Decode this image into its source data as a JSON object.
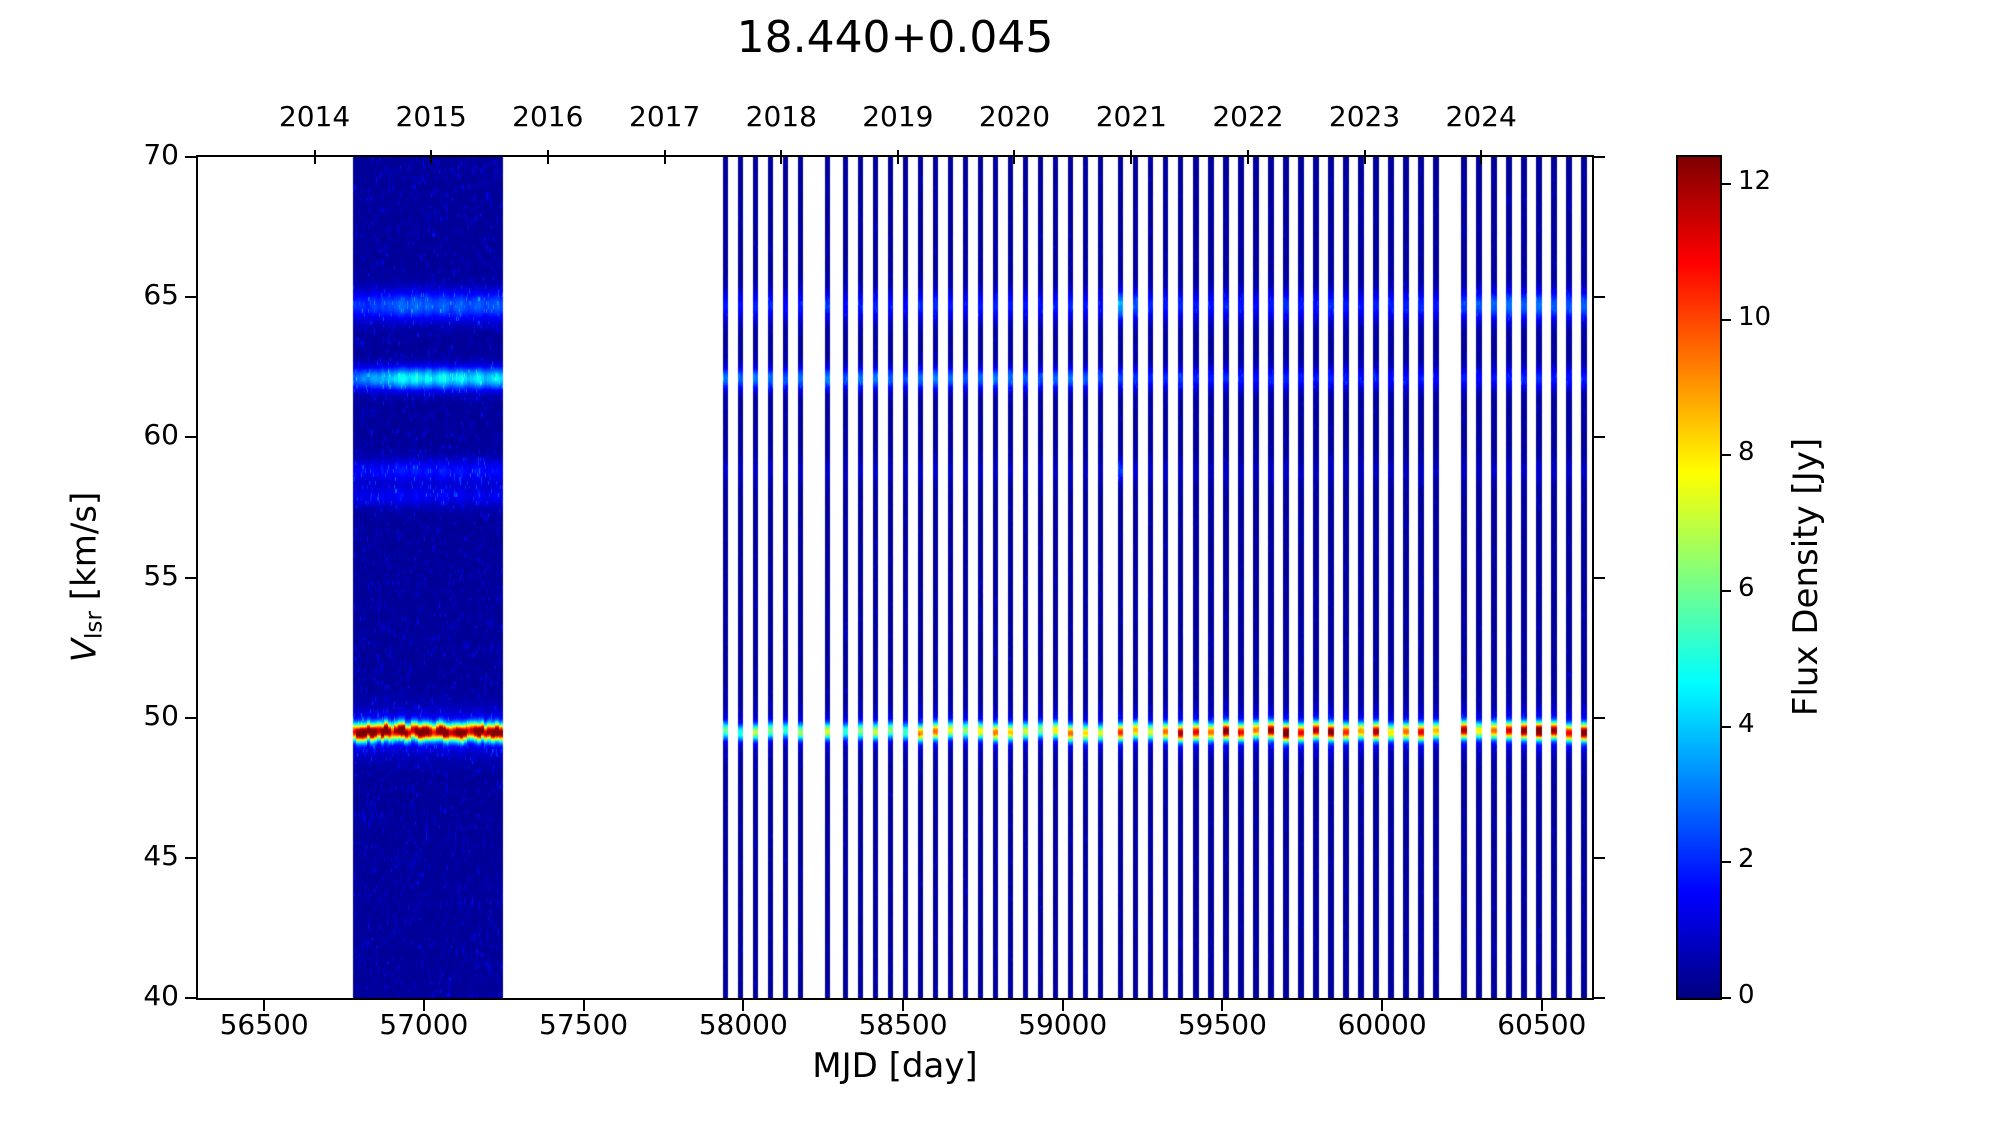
{
  "title": "18.440+0.045",
  "axes": {
    "xlabel": "MJD [day]",
    "ylabel": {
      "var": "V",
      "sub": "lsr",
      "rest": " [km/s]"
    },
    "x_ticks": [
      56500,
      57000,
      57500,
      58000,
      58500,
      59000,
      59500,
      60000,
      60500
    ],
    "y_ticks": [
      70,
      65,
      60,
      55,
      50,
      45,
      40
    ],
    "top_years": [
      {
        "label": "2014",
        "mjd": 56658
      },
      {
        "label": "2015",
        "mjd": 57023
      },
      {
        "label": "2016",
        "mjd": 57388
      },
      {
        "label": "2017",
        "mjd": 57754
      },
      {
        "label": "2018",
        "mjd": 58119
      },
      {
        "label": "2019",
        "mjd": 58484
      },
      {
        "label": "2020",
        "mjd": 58849
      },
      {
        "label": "2021",
        "mjd": 59215
      },
      {
        "label": "2022",
        "mjd": 59580
      },
      {
        "label": "2023",
        "mjd": 59945
      },
      {
        "label": "2024",
        "mjd": 60310
      }
    ]
  },
  "colorbar": {
    "label": "Flux Density [Jy]",
    "ticks": [
      0,
      2,
      4,
      6,
      8,
      10,
      12
    ],
    "vmin": 0,
    "vmax": 12.4,
    "colormap": "jet"
  },
  "chart_data": {
    "type": "heatmap",
    "title": "18.440+0.045",
    "xlabel": "MJD [day]",
    "ylabel": "Vlsr [km/s]",
    "xlim": [
      56293,
      60657
    ],
    "ylim": [
      40,
      70
    ],
    "flux_min_jy": 0,
    "flux_max_jy": 12.4,
    "grid": false,
    "background_flux_jy": 0.3,
    "feature_velocities_kms": [
      49.5,
      57.9,
      58.8,
      62.1,
      64.7
    ],
    "feature_sigmas_kms": [
      0.2,
      0.28,
      0.3,
      0.28,
      0.38
    ],
    "dense_campaign_mjd": [
      56785,
      57240
    ],
    "sparse_campaign_mjd": [
      57942,
      60631
    ],
    "stripe_width_days": {
      "dense": 11,
      "sparse": 14
    },
    "epochs_format": [
      "mjd",
      "amp_49.5",
      "amp_62.1",
      "amp_64.7",
      "amp_58.8",
      "amp_57.9"
    ],
    "epochs": [
      [
        56785,
        9.5,
        2.4,
        1.6,
        1.0,
        0.8
      ],
      [
        56794,
        11.8,
        2.6,
        1.7,
        1.1,
        0.9
      ],
      [
        56805,
        12.4,
        2.8,
        1.8,
        1.2,
        1.0
      ],
      [
        56817,
        12.0,
        3.0,
        1.7,
        1.1,
        0.9
      ],
      [
        56826,
        11.2,
        2.7,
        1.6,
        1.0,
        0.8
      ],
      [
        56838,
        12.4,
        3.2,
        1.9,
        1.3,
        1.1
      ],
      [
        56850,
        11.5,
        3.4,
        2.0,
        1.2,
        1.0
      ],
      [
        56859,
        10.2,
        3.1,
        1.8,
        1.1,
        0.9
      ],
      [
        56871,
        12.2,
        3.6,
        2.1,
        1.4,
        1.2
      ],
      [
        56880,
        12.4,
        3.3,
        2.0,
        1.2,
        1.0
      ],
      [
        56892,
        11.0,
        3.8,
        2.2,
        1.3,
        1.1
      ],
      [
        56903,
        9.0,
        3.5,
        2.1,
        1.2,
        0.9
      ],
      [
        56912,
        10.5,
        4.0,
        2.3,
        1.4,
        1.2
      ],
      [
        56924,
        11.8,
        4.4,
        2.4,
        1.5,
        1.3
      ],
      [
        56933,
        12.4,
        4.6,
        2.5,
        1.6,
        1.2
      ],
      [
        56945,
        10.8,
        4.2,
        2.3,
        1.4,
        1.0
      ],
      [
        56957,
        9.6,
        3.9,
        2.2,
        1.3,
        0.9
      ],
      [
        56966,
        10.0,
        4.3,
        2.4,
        1.5,
        1.1
      ],
      [
        56978,
        11.4,
        4.6,
        2.6,
        1.6,
        1.3
      ],
      [
        56987,
        12.0,
        4.1,
        2.4,
        1.4,
        1.1
      ],
      [
        56999,
        12.4,
        3.8,
        2.2,
        1.3,
        1.0
      ],
      [
        57010,
        11.6,
        4.5,
        2.5,
        1.5,
        1.2
      ],
      [
        57022,
        10.4,
        4.2,
        2.3,
        1.4,
        1.0
      ],
      [
        57031,
        9.2,
        3.7,
        2.1,
        1.2,
        0.9
      ],
      [
        57043,
        10.8,
        4.0,
        2.2,
        1.3,
        1.0
      ],
      [
        57052,
        11.9,
        4.4,
        2.4,
        1.5,
        1.2
      ],
      [
        57064,
        12.4,
        4.6,
        2.5,
        1.6,
        1.3
      ],
      [
        57076,
        11.1,
        4.1,
        2.3,
        1.4,
        1.1
      ],
      [
        57085,
        9.8,
        3.6,
        2.0,
        1.2,
        0.9
      ],
      [
        57097,
        10.6,
        3.9,
        2.2,
        1.3,
        1.0
      ],
      [
        57106,
        11.5,
        4.2,
        2.4,
        1.4,
        1.1
      ],
      [
        57118,
        12.2,
        4.5,
        2.5,
        1.5,
        1.2
      ],
      [
        57129,
        10.9,
        4.0,
        2.2,
        1.3,
        1.0
      ],
      [
        57141,
        9.4,
        3.5,
        2.0,
        1.1,
        0.8
      ],
      [
        57150,
        10.2,
        3.8,
        2.1,
        1.2,
        0.9
      ],
      [
        57162,
        11.6,
        4.1,
        2.3,
        1.4,
        1.1
      ],
      [
        57171,
        12.4,
        4.4,
        2.4,
        1.5,
        1.2
      ],
      [
        57183,
        11.3,
        3.9,
        2.2,
        1.3,
        1.0
      ],
      [
        57195,
        10.0,
        3.4,
        1.9,
        1.1,
        0.8
      ],
      [
        57204,
        10.7,
        3.7,
        2.1,
        1.2,
        0.9
      ],
      [
        57216,
        11.8,
        4.0,
        2.2,
        1.3,
        1.0
      ],
      [
        57228,
        12.4,
        4.3,
        2.4,
        1.4,
        1.1
      ],
      [
        57240,
        11.0,
        3.8,
        2.1,
        1.2,
        0.9
      ],
      [
        57942,
        5.0,
        2.6,
        1.5,
        0.5,
        0
      ],
      [
        57989,
        4.2,
        2.4,
        1.4,
        0.4,
        0
      ],
      [
        58036,
        5.8,
        2.7,
        1.6,
        0.5,
        0
      ],
      [
        58083,
        5.2,
        2.5,
        1.5,
        0.5,
        0
      ],
      [
        58130,
        4.4,
        2.2,
        1.3,
        0.4,
        0
      ],
      [
        58177,
        5.6,
        2.6,
        1.5,
        0.5,
        0
      ],
      [
        58262,
        6.2,
        2.8,
        1.7,
        0.6,
        0
      ],
      [
        58318,
        4.4,
        2.1,
        1.3,
        0.4,
        0
      ],
      [
        58365,
        5.4,
        2.5,
        1.5,
        0.5,
        0
      ],
      [
        58412,
        6.0,
        2.7,
        1.6,
        0.5,
        0
      ],
      [
        58459,
        5.2,
        2.3,
        1.4,
        0.4,
        0
      ],
      [
        58506,
        4.6,
        2.1,
        1.2,
        0.4,
        0
      ],
      [
        58553,
        7.8,
        2.6,
        1.6,
        0.5,
        0
      ],
      [
        58600,
        8.2,
        2.8,
        1.7,
        0.6,
        0
      ],
      [
        58647,
        6.4,
        2.5,
        1.5,
        0.5,
        0
      ],
      [
        58694,
        5.4,
        2.2,
        1.3,
        0.4,
        0
      ],
      [
        58741,
        6.6,
        2.4,
        1.5,
        0.5,
        0
      ],
      [
        58788,
        8.0,
        2.7,
        1.6,
        0.5,
        0
      ],
      [
        58835,
        7.2,
        2.5,
        1.5,
        0.5,
        0
      ],
      [
        58882,
        6.0,
        2.3,
        1.4,
        0.4,
        0
      ],
      [
        58929,
        5.2,
        2.1,
        1.3,
        0.4,
        0
      ],
      [
        58976,
        6.8,
        2.4,
        1.5,
        0.5,
        0
      ],
      [
        59023,
        8.2,
        2.6,
        1.6,
        0.5,
        0
      ],
      [
        59070,
        7.0,
        2.3,
        1.4,
        0.4,
        0
      ],
      [
        59117,
        6.2,
        2.1,
        1.3,
        0.4,
        0
      ],
      [
        59180,
        9.0,
        2.0,
        3.2,
        1.8,
        0
      ],
      [
        59227,
        7.4,
        1.8,
        2.2,
        0.7,
        0
      ],
      [
        59274,
        6.2,
        1.6,
        1.6,
        0.5,
        0
      ],
      [
        59321,
        8.2,
        1.7,
        1.5,
        0.5,
        0
      ],
      [
        59368,
        10.5,
        1.8,
        1.6,
        0.5,
        0
      ],
      [
        59415,
        9.6,
        1.6,
        1.5,
        0.4,
        0
      ],
      [
        59462,
        8.2,
        1.5,
        1.4,
        0.4,
        0
      ],
      [
        59509,
        11.0,
        1.7,
        1.6,
        0.5,
        0
      ],
      [
        59556,
        9.4,
        1.5,
        1.4,
        0.4,
        0
      ],
      [
        59603,
        8.0,
        1.4,
        1.3,
        0.4,
        0
      ],
      [
        59650,
        10.6,
        1.6,
        1.5,
        0.5,
        0
      ],
      [
        59697,
        12.0,
        1.7,
        1.8,
        0.5,
        0
      ],
      [
        59744,
        9.6,
        1.5,
        1.5,
        0.4,
        0
      ],
      [
        59791,
        10.2,
        1.4,
        1.4,
        0.4,
        0
      ],
      [
        59838,
        11.0,
        1.6,
        1.7,
        0.5,
        0
      ],
      [
        59885,
        9.0,
        1.4,
        1.5,
        0.4,
        0
      ],
      [
        59932,
        7.6,
        1.3,
        1.4,
        0.4,
        0
      ],
      [
        59979,
        10.4,
        1.5,
        1.6,
        0.5,
        0
      ],
      [
        60026,
        6.8,
        1.3,
        1.5,
        0.4,
        0
      ],
      [
        60073,
        8.2,
        1.4,
        1.6,
        0.4,
        0
      ],
      [
        60120,
        9.6,
        1.5,
        1.7,
        0.5,
        0
      ],
      [
        60167,
        7.4,
        1.3,
        1.5,
        0.4,
        0
      ],
      [
        60255,
        10.4,
        1.5,
        2.0,
        0.5,
        0
      ],
      [
        60302,
        6.6,
        1.3,
        2.2,
        0.4,
        0
      ],
      [
        60349,
        8.2,
        1.4,
        2.4,
        0.5,
        0
      ],
      [
        60396,
        9.8,
        1.5,
        2.6,
        0.5,
        0
      ],
      [
        60443,
        11.0,
        1.6,
        2.4,
        0.5,
        0
      ],
      [
        60490,
        12.2,
        1.7,
        2.6,
        0.6,
        0
      ],
      [
        60537,
        10.6,
        1.5,
        2.3,
        0.5,
        0
      ],
      [
        60584,
        9.6,
        1.4,
        2.2,
        0.5,
        0
      ],
      [
        60631,
        11.4,
        1.5,
        2.4,
        0.5,
        0
      ]
    ]
  }
}
